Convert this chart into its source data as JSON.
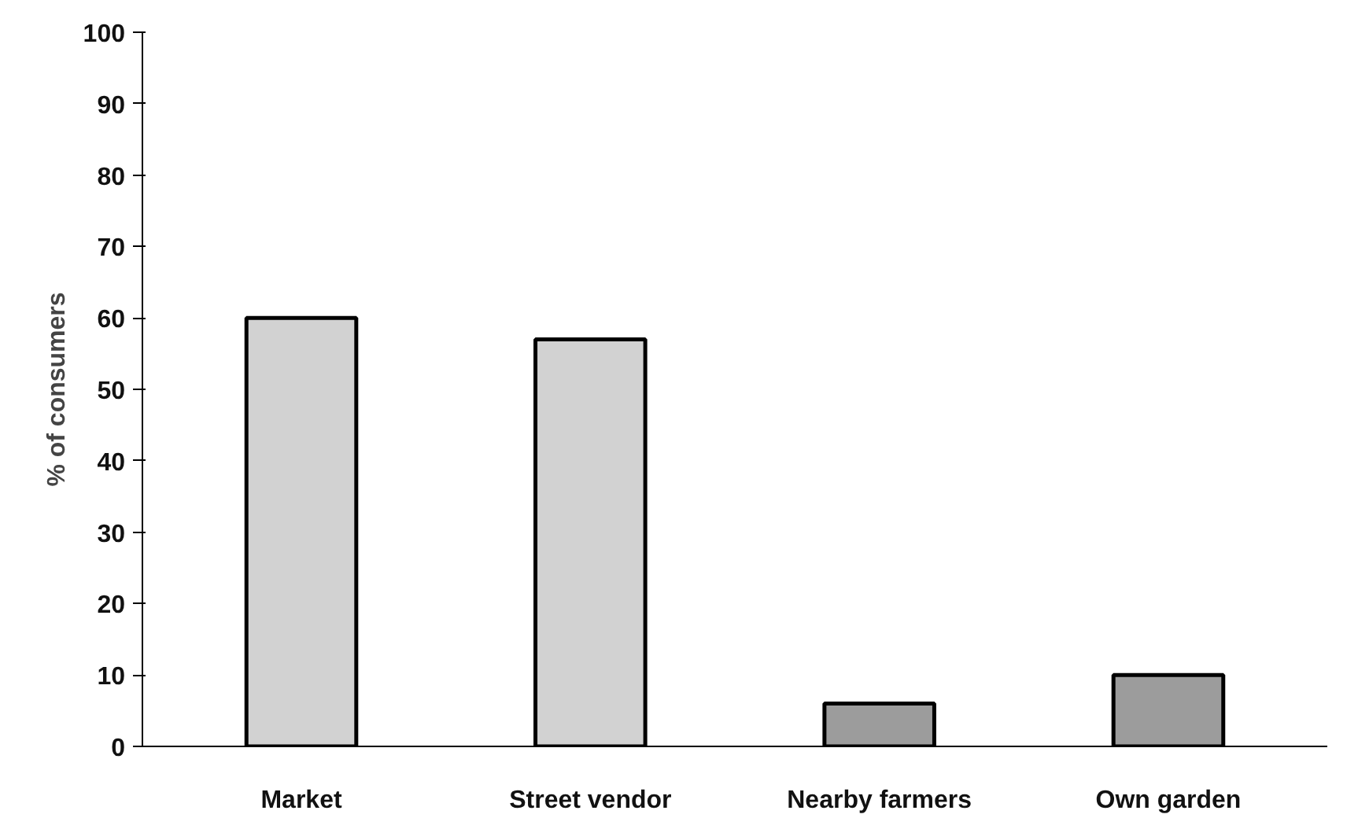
{
  "chart_data": {
    "type": "bar",
    "ylabel": "% of consumers",
    "categories": [
      "Market",
      "Street vendor",
      "Nearby farmers",
      "Own garden"
    ],
    "values": [
      60,
      57,
      6,
      10
    ],
    "colors": [
      "#d2d2d2",
      "#d2d2d2",
      "#9c9c9c",
      "#9c9c9c"
    ],
    "ylim": [
      0,
      100
    ],
    "yticks": [
      0,
      10,
      20,
      30,
      40,
      50,
      60,
      70,
      80,
      90,
      100
    ],
    "grid": false
  }
}
